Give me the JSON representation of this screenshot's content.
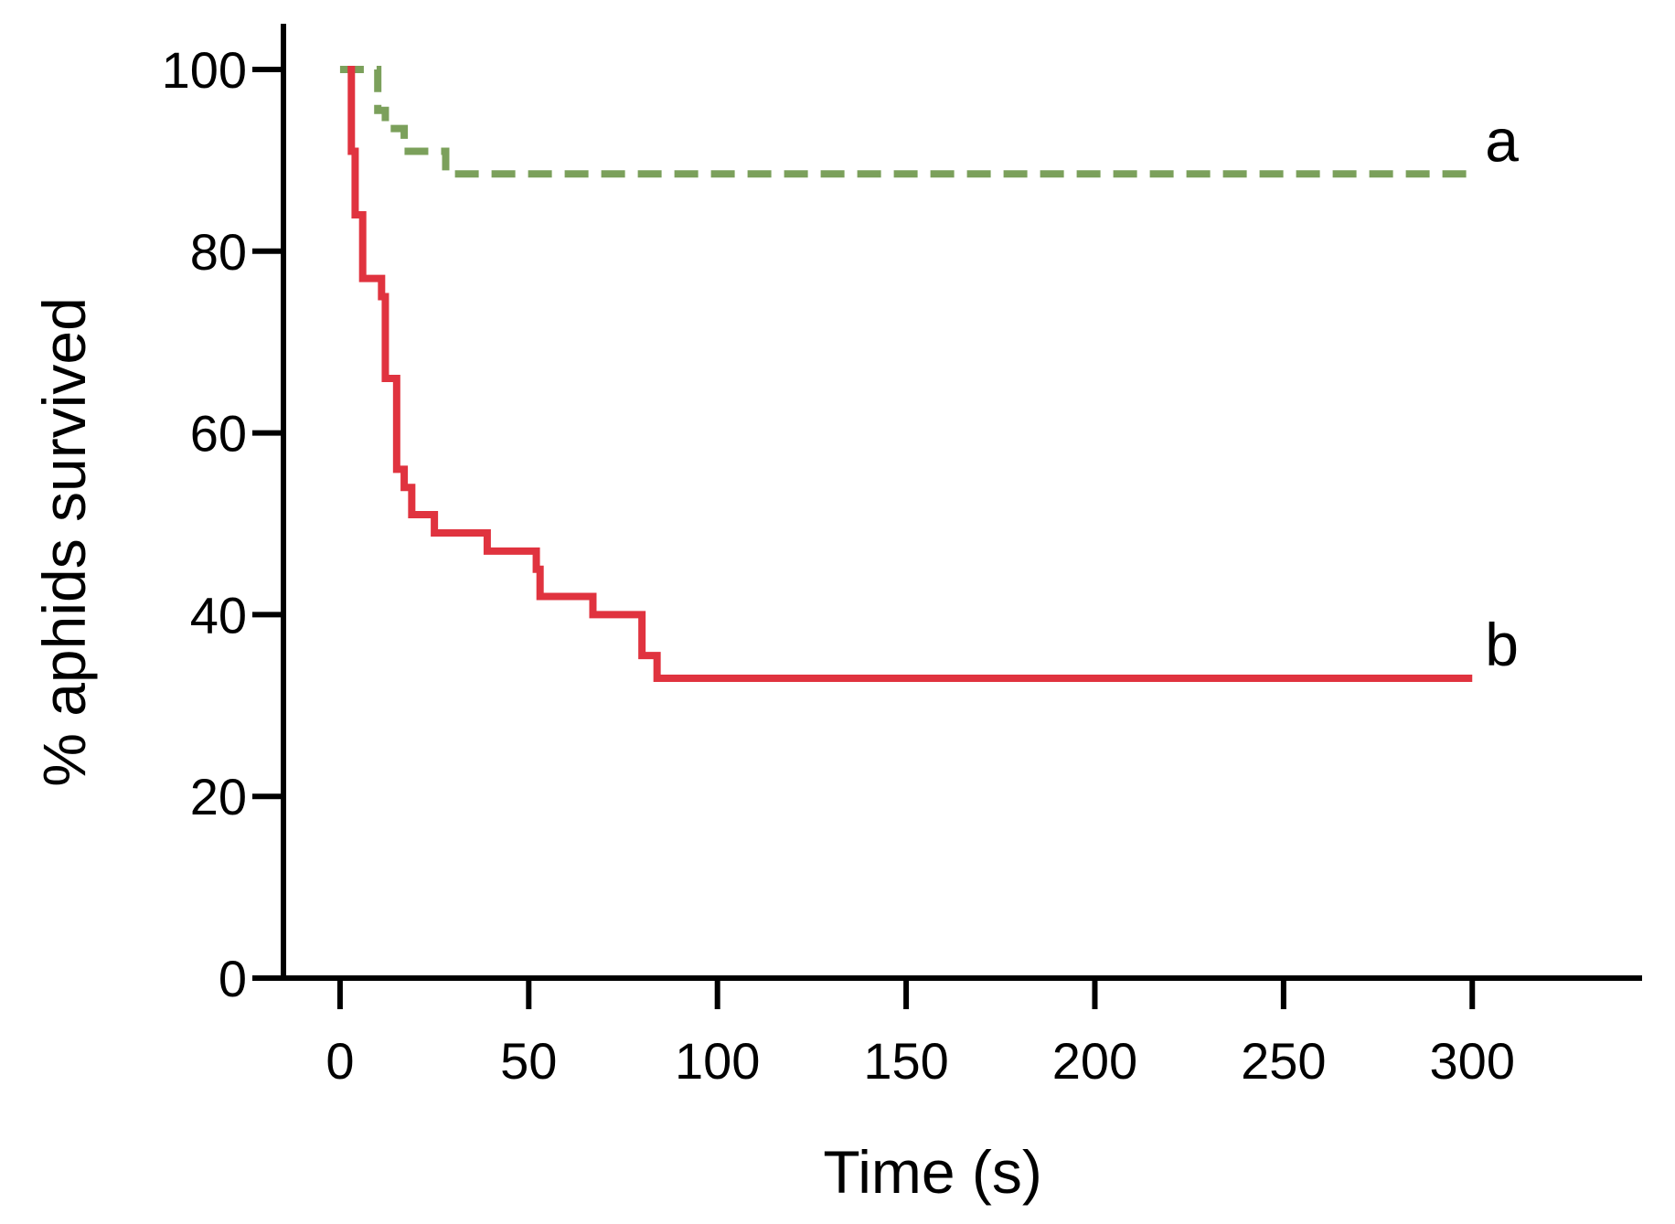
{
  "chart_data": {
    "type": "line",
    "subtype": "step",
    "title": "",
    "xlabel": "Time (s)",
    "ylabel": "% aphids survived",
    "xlim": [
      -15,
      345
    ],
    "ylim": [
      0,
      100
    ],
    "x_ticks": [
      0,
      50,
      100,
      150,
      200,
      250,
      300
    ],
    "y_ticks": [
      0,
      20,
      40,
      60,
      80,
      100
    ],
    "x_tick_labels": [
      "0",
      "50",
      "100",
      "150",
      "200",
      "250",
      "300"
    ],
    "y_tick_labels": [
      "0",
      "20",
      "40",
      "60",
      "80",
      "100"
    ],
    "grid": false,
    "legend": "none",
    "series": [
      {
        "name": "a",
        "color": "#7ba05b",
        "line_style": "dashed",
        "points": [
          [
            0,
            100
          ],
          [
            8,
            100
          ],
          [
            10,
            95.5
          ],
          [
            12,
            93.5
          ],
          [
            17,
            91
          ],
          [
            28,
            88.5
          ],
          [
            300,
            88.5
          ]
        ]
      },
      {
        "name": "b",
        "color": "#e0333f",
        "line_style": "solid",
        "points": [
          [
            2,
            100
          ],
          [
            3,
            91
          ],
          [
            4,
            84
          ],
          [
            6,
            77
          ],
          [
            11,
            75
          ],
          [
            12,
            66
          ],
          [
            15,
            56
          ],
          [
            17,
            54
          ],
          [
            19,
            51
          ],
          [
            25,
            49
          ],
          [
            39,
            47
          ],
          [
            52,
            45
          ],
          [
            53,
            42
          ],
          [
            67,
            40
          ],
          [
            80,
            35.5
          ],
          [
            84,
            33
          ],
          [
            300,
            33
          ]
        ]
      }
    ]
  }
}
